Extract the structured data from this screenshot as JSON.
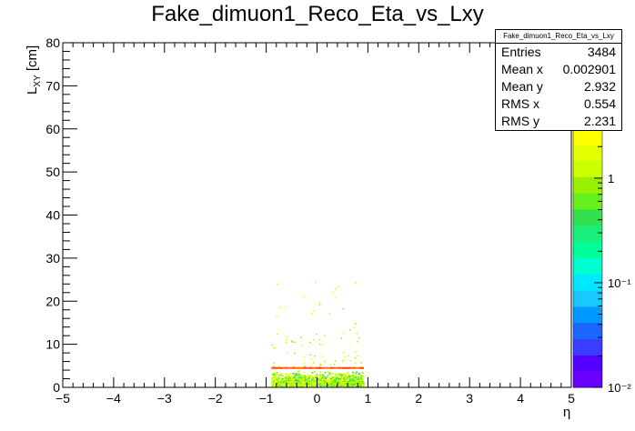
{
  "chart_data": {
    "type": "heatmap",
    "title": "Fake_dimuon1_Reco_Eta_vs_Lxy",
    "xlabel": "η",
    "ylabel": "L_XY [cm]",
    "xlim": [
      -5,
      5
    ],
    "ylim": [
      0,
      80
    ],
    "x_ticks": [
      "−5",
      "−4",
      "−3",
      "−2",
      "−1",
      "0",
      "1",
      "2",
      "3",
      "4",
      "5"
    ],
    "y_ticks": [
      "0",
      "10",
      "20",
      "30",
      "40",
      "50",
      "60",
      "70",
      "80"
    ],
    "z_scale": "log",
    "z_range": [
      0.01,
      3
    ],
    "z_ticks": [
      "10⁻²",
      "10⁻¹",
      "1"
    ],
    "grid": false,
    "description_of_fill": "points concentrated for eta in [-0.9, 0.9], Lxy in [0, 5]; band peak near Lxy 4.5",
    "palette": [
      "#6a00ff",
      "#5500ff",
      "#3a3dff",
      "#1a66ff",
      "#0099ff",
      "#19c8ff",
      "#00e8ff",
      "#00ffd0",
      "#00ff99",
      "#19f07a",
      "#33e050",
      "#66f020",
      "#99f000",
      "#ccff00",
      "#e6ff00",
      "#ffff00"
    ],
    "stats": {
      "name": "Fake_dimuon1_Reco_Eta_vs_Lxy",
      "rows": [
        {
          "label": "Entries",
          "value": "3484"
        },
        {
          "label": "Mean x",
          "value": "0.002901"
        },
        {
          "label": "Mean y",
          "value": "2.932"
        },
        {
          "label": "RMS x",
          "value": "0.554"
        },
        {
          "label": "RMS y",
          "value": "2.231"
        }
      ]
    }
  }
}
